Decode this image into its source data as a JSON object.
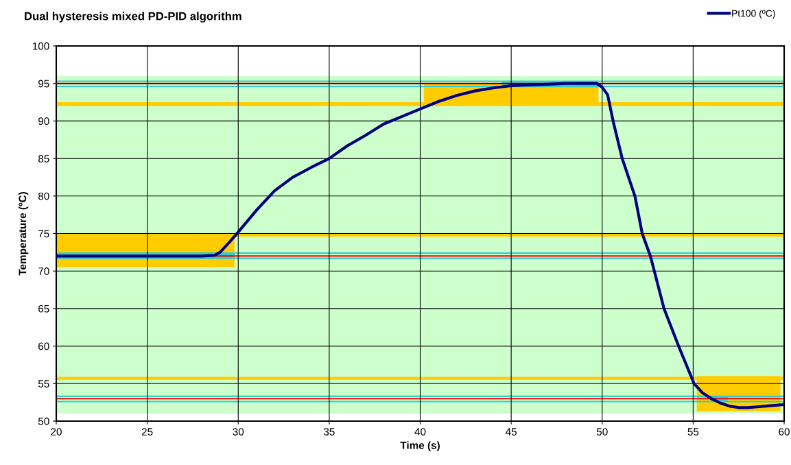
{
  "chart_data": {
    "type": "line",
    "title": "Dual hysteresis mixed PD-PID algorithm",
    "xlabel": "Time (s)",
    "ylabel": "Temperature (ºC)",
    "xlim": [
      20,
      60
    ],
    "xticks": [
      20,
      25,
      30,
      35,
      40,
      45,
      50,
      55,
      60
    ],
    "ylim": [
      50,
      100
    ],
    "yticks": [
      50,
      55,
      60,
      65,
      70,
      75,
      80,
      85,
      90,
      95,
      100
    ],
    "grid": true,
    "legend": "top right",
    "marker": "none",
    "line_style": "solid",
    "bands": [
      {
        "axis": "y",
        "from": 51,
        "to": 96,
        "color": "#ccffcc"
      },
      {
        "axis": "y",
        "from": 92.0,
        "to": 92.5,
        "color": "#ffcc00"
      },
      {
        "axis": "y",
        "from": 74.6,
        "to": 75.0,
        "color": "#ffcc00"
      },
      {
        "axis": "y",
        "from": 55.5,
        "to": 55.9,
        "color": "#ffcc00"
      }
    ],
    "ref_lines": [
      {
        "axis": "y",
        "value": 95.3,
        "color": "#33cccc"
      },
      {
        "axis": "y",
        "value": 94.6,
        "color": "#33cccc"
      },
      {
        "axis": "y",
        "value": 72.4,
        "color": "#33cccc"
      },
      {
        "axis": "y",
        "value": 71.7,
        "color": "#33cccc"
      },
      {
        "axis": "y",
        "value": 53.3,
        "color": "#33cccc"
      },
      {
        "axis": "y",
        "value": 52.6,
        "color": "#33cccc"
      },
      {
        "axis": "y",
        "value": 95,
        "color": "#ff0000"
      },
      {
        "axis": "y",
        "value": 72,
        "color": "#ff0000"
      },
      {
        "axis": "y",
        "value": 53,
        "color": "#ff0000"
      }
    ],
    "series": [
      {
        "color": "#ffcc00",
        "x": [
          20,
          29.8
        ],
        "values": [
          null,
          null
        ],
        "lower": [
          70.5,
          70.5
        ],
        "upper": [
          75.0,
          75.0
        ]
      },
      {
        "color": "#ffcc00",
        "x": [
          40.2,
          49.8
        ],
        "values": [
          null,
          null
        ],
        "lower": [
          92.0,
          92.0
        ],
        "upper": [
          95.0,
          95.0
        ]
      },
      {
        "color": "#ffcc00",
        "x": [
          55.2,
          59.8
        ],
        "values": [
          null,
          null
        ],
        "lower": [
          51.3,
          51.3
        ],
        "upper": [
          56.0,
          56.0
        ]
      },
      {
        "color": "#33cccc",
        "x": [
          20,
          29.8
        ],
        "values": [
          null,
          null
        ],
        "lower": [
          71.7,
          71.7
        ],
        "upper": [
          72.4,
          72.4
        ]
      },
      {
        "color": "#33cccc",
        "x": [
          44.5,
          49.8
        ],
        "values": [
          null,
          null
        ],
        "lower": [
          94.5,
          94.5
        ],
        "upper": [
          95.3,
          95.3
        ]
      },
      {
        "color": "#33cccc",
        "x": [
          56,
          56.9
        ],
        "values": [
          null,
          null
        ],
        "lower": [
          52.6,
          52.6
        ],
        "upper": [
          53.3,
          53.3
        ]
      },
      {
        "name": "Pt100 (ºC)",
        "color": "#000080",
        "x": [
          20,
          22,
          24,
          26,
          28,
          28.7,
          29,
          29.5,
          30,
          31,
          32,
          33,
          34,
          35,
          36,
          37,
          38,
          39,
          40,
          41,
          42,
          43,
          44,
          45,
          46,
          47,
          48,
          49.7,
          50,
          50.3,
          50.6,
          51.1,
          51.8,
          52.2,
          52.65,
          53.4,
          54.2,
          55.05,
          55.5,
          56,
          56.5,
          57,
          57.5,
          58,
          58.5,
          59,
          59.5,
          60
        ],
        "values": [
          72,
          72,
          72,
          72,
          72,
          72.1,
          72.5,
          73.8,
          75.2,
          78.1,
          80.7,
          82.5,
          83.8,
          85.0,
          86.7,
          88.1,
          89.6,
          90.6,
          91.6,
          92.6,
          93.4,
          94.0,
          94.4,
          94.7,
          94.8,
          94.9,
          95.0,
          95.0,
          94.5,
          93.5,
          90,
          85,
          80,
          75,
          72,
          65,
          60,
          55,
          53.8,
          53.0,
          52.4,
          52.0,
          51.8,
          51.8,
          51.9,
          52.0,
          52.1,
          52.2
        ]
      }
    ]
  }
}
